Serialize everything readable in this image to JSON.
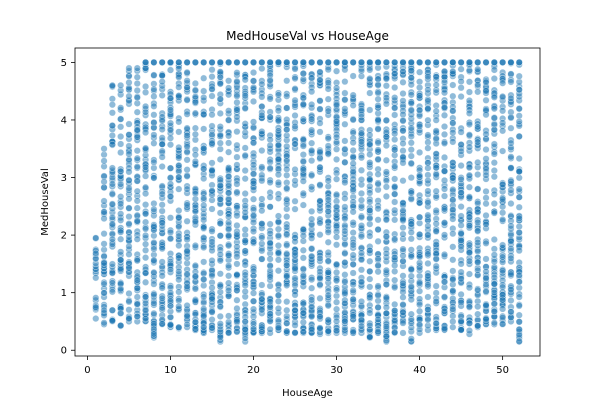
{
  "chart_data": {
    "type": "scatter",
    "title": "MedHouseVal vs HouseAge",
    "xlabel": "HouseAge",
    "ylabel": "MedHouseVal",
    "xlim": [
      -1.5,
      54.5
    ],
    "ylim": [
      -0.1,
      5.25
    ],
    "xticks": [
      0,
      10,
      20,
      30,
      40,
      50
    ],
    "yticks": [
      0,
      1,
      2,
      3,
      4,
      5
    ],
    "grid": false,
    "legend": "none",
    "marker_color": "#1f77b4",
    "marker_edge_color": "#ffffff",
    "marker_alpha": 0.5,
    "x_values": [
      1,
      2,
      3,
      4,
      5,
      6,
      7,
      8,
      9,
      10,
      11,
      12,
      13,
      14,
      15,
      16,
      17,
      18,
      19,
      20,
      21,
      22,
      23,
      24,
      25,
      26,
      27,
      28,
      29,
      30,
      31,
      32,
      33,
      34,
      35,
      36,
      37,
      38,
      39,
      40,
      41,
      42,
      43,
      44,
      45,
      46,
      47,
      48,
      49,
      50,
      51,
      52
    ],
    "y_ranges": [
      [
        0.55,
        1.95
      ],
      [
        0.45,
        3.5
      ],
      [
        0.5,
        4.6
      ],
      [
        0.42,
        4.6
      ],
      [
        0.5,
        4.9
      ],
      [
        0.5,
        4.9
      ],
      [
        0.5,
        5.0
      ],
      [
        0.22,
        5.0
      ],
      [
        0.45,
        5.0
      ],
      [
        0.4,
        5.0
      ],
      [
        0.38,
        5.0
      ],
      [
        0.4,
        5.0
      ],
      [
        0.35,
        5.0
      ],
      [
        0.3,
        5.0
      ],
      [
        0.35,
        5.0
      ],
      [
        0.15,
        5.0
      ],
      [
        0.3,
        5.0
      ],
      [
        0.32,
        5.0
      ],
      [
        0.15,
        5.0
      ],
      [
        0.3,
        5.0
      ],
      [
        0.3,
        5.0
      ],
      [
        0.3,
        5.0
      ],
      [
        0.35,
        5.0
      ],
      [
        0.3,
        5.0
      ],
      [
        0.3,
        5.0
      ],
      [
        0.3,
        5.0
      ],
      [
        0.3,
        5.0
      ],
      [
        0.28,
        5.0
      ],
      [
        0.3,
        5.0
      ],
      [
        0.3,
        5.0
      ],
      [
        0.3,
        5.0
      ],
      [
        0.3,
        5.0
      ],
      [
        0.3,
        5.0
      ],
      [
        0.22,
        5.0
      ],
      [
        0.3,
        5.0
      ],
      [
        0.15,
        5.0
      ],
      [
        0.3,
        5.0
      ],
      [
        0.3,
        5.0
      ],
      [
        0.15,
        5.0
      ],
      [
        0.3,
        5.0
      ],
      [
        0.35,
        5.0
      ],
      [
        0.35,
        5.0
      ],
      [
        0.35,
        5.0
      ],
      [
        0.4,
        5.0
      ],
      [
        0.35,
        5.0
      ],
      [
        0.28,
        5.0
      ],
      [
        0.4,
        5.0
      ],
      [
        0.45,
        5.0
      ],
      [
        0.45,
        5.0
      ],
      [
        0.45,
        5.0
      ],
      [
        0.5,
        5.0
      ],
      [
        0.15,
        5.0
      ]
    ],
    "cap_value": 5.0
  }
}
